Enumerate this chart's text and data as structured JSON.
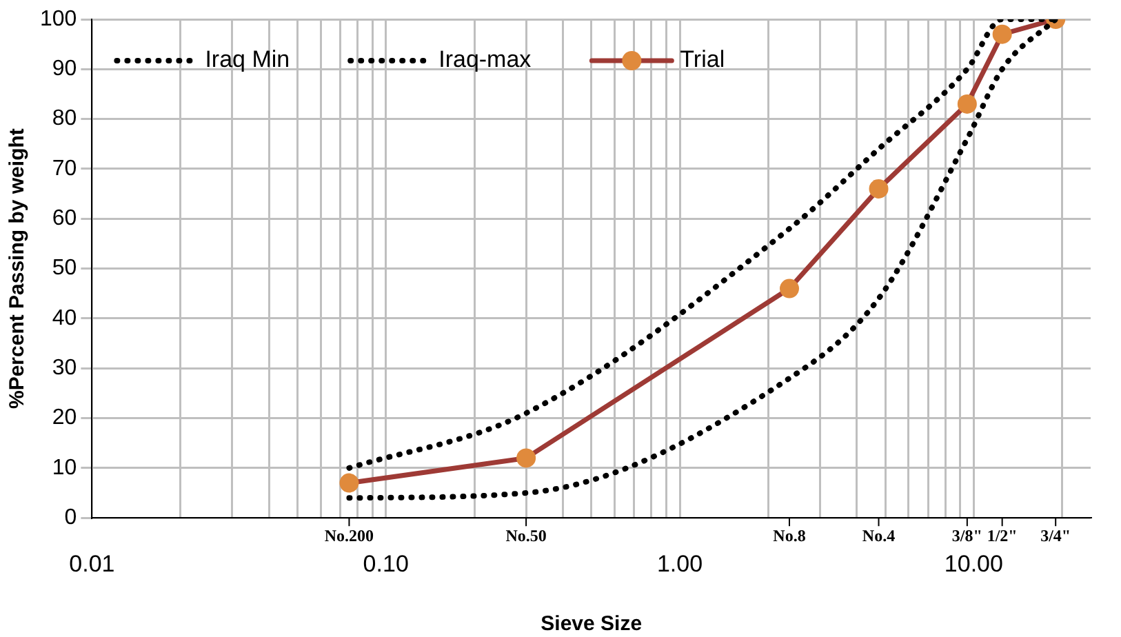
{
  "chart_data": {
    "type": "line",
    "xlabel": "Sieve Size",
    "ylabel": "%Percent Passing by weight",
    "x": [
      0.075,
      0.3,
      2.36,
      4.75,
      9.5,
      12.5,
      19
    ],
    "series": [
      {
        "name": "Iraq Min",
        "color": "#000000",
        "line_style": "dotted",
        "marker": "none",
        "values": [
          4,
          5,
          28,
          44,
          76,
          90,
          100
        ]
      },
      {
        "name": "Iraq-max",
        "color": "#000000",
        "line_style": "dotted",
        "marker": "none",
        "values": [
          10,
          21,
          58,
          74,
          90,
          100,
          100
        ]
      },
      {
        "name": "Trial",
        "color": "#9e3a35",
        "line_style": "solid",
        "marker": "circle",
        "values": [
          7,
          12,
          46,
          66,
          83,
          97,
          100
        ]
      }
    ],
    "log": "x",
    "xlim": [
      0.01,
      25
    ],
    "ylim": [
      0,
      100
    ],
    "xticks": [
      {
        "value": 0.01,
        "label": "0.01"
      },
      {
        "value": 0.02,
        "label": null
      },
      {
        "value": 0.03,
        "label": null
      },
      {
        "value": 0.04,
        "label": null
      },
      {
        "value": 0.05,
        "label": null
      },
      {
        "value": 0.06,
        "label": null
      },
      {
        "value": 0.07,
        "label": null
      },
      {
        "value": 0.08,
        "label": null
      },
      {
        "value": 0.09,
        "label": null
      },
      {
        "value": 0.1,
        "label": "0.10"
      },
      {
        "value": 0.2,
        "label": null
      },
      {
        "value": 0.3,
        "label": null
      },
      {
        "value": 0.4,
        "label": null
      },
      {
        "value": 0.5,
        "label": null
      },
      {
        "value": 0.6,
        "label": null
      },
      {
        "value": 0.7,
        "label": null
      },
      {
        "value": 0.8,
        "label": null
      },
      {
        "value": 0.9,
        "label": null
      },
      {
        "value": 1,
        "label": "1.00"
      },
      {
        "value": 2,
        "label": null
      },
      {
        "value": 3,
        "label": null
      },
      {
        "value": 4,
        "label": null
      },
      {
        "value": 5,
        "label": null
      },
      {
        "value": 6,
        "label": null
      },
      {
        "value": 7,
        "label": null
      },
      {
        "value": 8,
        "label": null
      },
      {
        "value": 9,
        "label": null
      },
      {
        "value": 10,
        "label": "10.00"
      },
      {
        "value": 20,
        "label": null
      }
    ],
    "yticks": [
      0,
      10,
      20,
      30,
      40,
      50,
      60,
      70,
      80,
      90,
      100
    ],
    "grid": true,
    "legend": "top left",
    "annotations": [
      "No.200",
      "No.50",
      "No.8",
      "No.4",
      "3/8\"",
      "1/2\"",
      "3/4\""
    ]
  }
}
